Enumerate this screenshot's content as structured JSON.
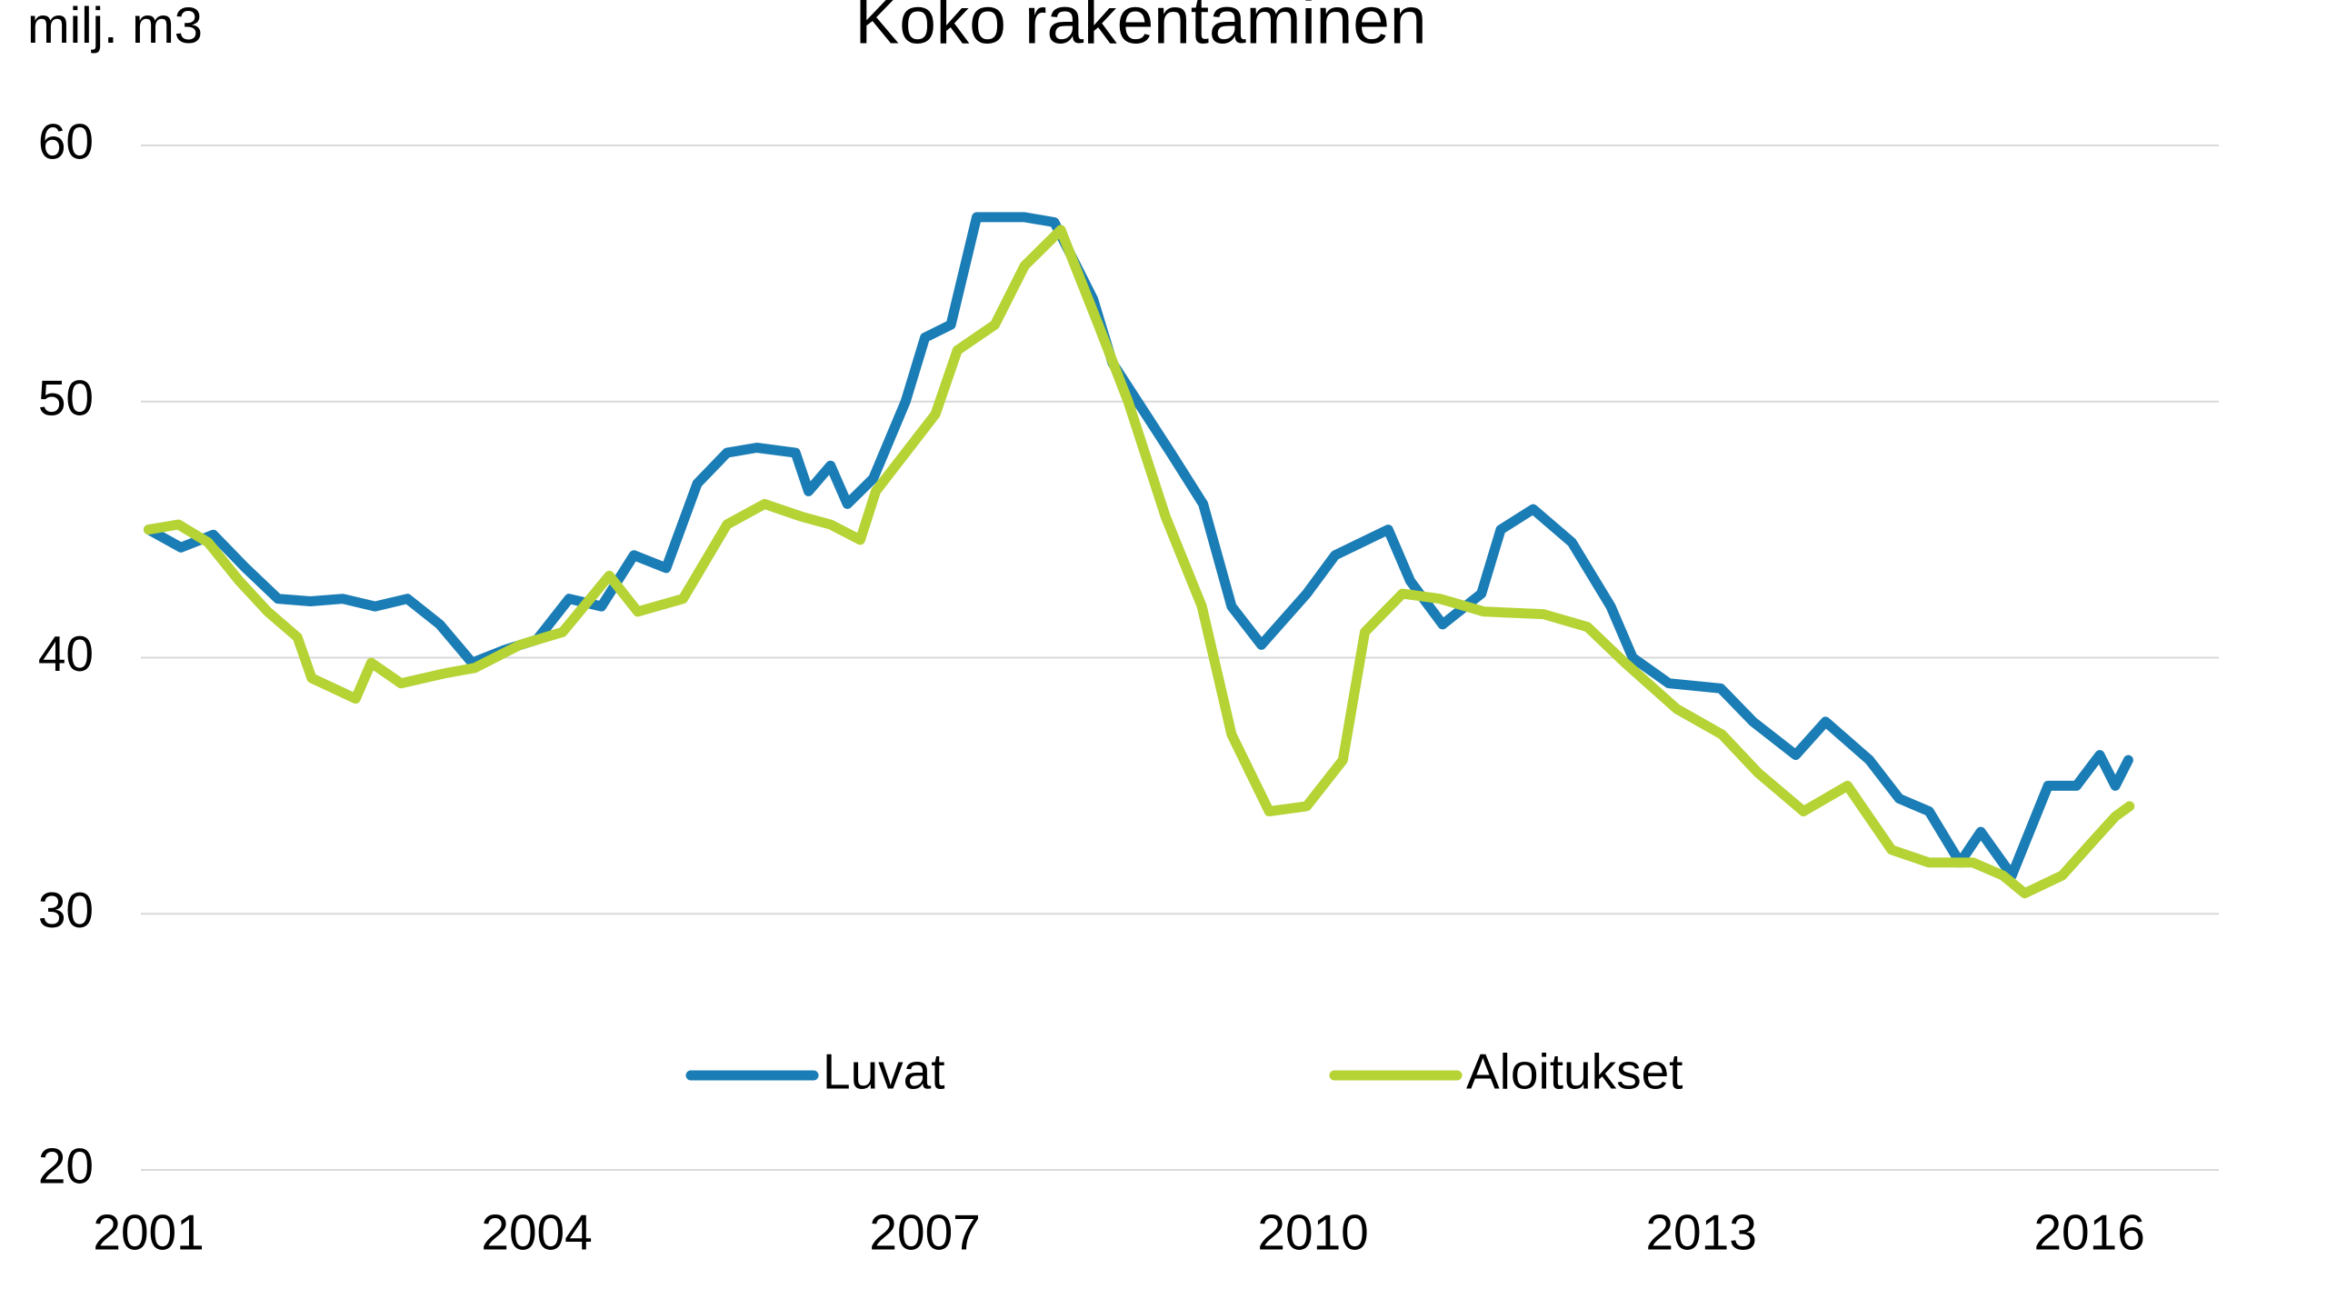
{
  "chart_data": {
    "type": "line",
    "title": "Koko rakentaminen",
    "y_label": "milj. m3",
    "xlim": [
      2000.94,
      2017
    ],
    "xticks": [
      2001,
      2004,
      2007,
      2010,
      2013,
      2016
    ],
    "ylim": [
      20,
      60
    ],
    "yticks": [
      20,
      30,
      40,
      50,
      60
    ],
    "grid": true,
    "legend": "bottom",
    "series": [
      {
        "name": "Luvat",
        "color": "#1b7db5",
        "x": [
          2001.0,
          2001.25,
          2001.5,
          2001.75,
          2002.0,
          2002.25,
          2002.5,
          2002.75,
          2003.0,
          2003.25,
          2003.5,
          2003.75,
          2004.0,
          2004.25,
          2004.5,
          2004.75,
          2005.0,
          2005.24,
          2005.47,
          2005.7,
          2006.0,
          2006.1,
          2006.27,
          2006.4,
          2006.6,
          2006.85,
          2007.0,
          2007.2,
          2007.4,
          2007.77,
          2008.0,
          2008.3,
          2008.45,
          2008.9,
          2009.15,
          2009.37,
          2009.6,
          2009.95,
          2010.17,
          2010.58,
          2010.75,
          2011.0,
          2011.3,
          2011.45,
          2011.7,
          2012.0,
          2012.3,
          2012.47,
          2012.75,
          2013.15,
          2013.4,
          2013.73,
          2013.96,
          2014.3,
          2014.53,
          2014.76,
          2015.0,
          2015.16,
          2015.4,
          2015.68,
          2015.9,
          2016.08,
          2016.2,
          2016.3
        ],
        "values": [
          45,
          44.3,
          44.8,
          43.5,
          42.3,
          42.2,
          42.3,
          42.0,
          42.3,
          41.3,
          39.8,
          40.3,
          40.7,
          42.3,
          42.0,
          44.0,
          43.5,
          46.8,
          48.0,
          48.2,
          48.0,
          46.5,
          47.5,
          46.0,
          47.0,
          50.0,
          52.5,
          53.0,
          57.2,
          57.2,
          57.0,
          54.0,
          51.5,
          48.0,
          46.0,
          42.0,
          40.5,
          42.5,
          44.0,
          45.0,
          43.0,
          41.3,
          42.5,
          45.0,
          45.8,
          44.5,
          42.0,
          40.0,
          39.0,
          38.8,
          37.5,
          36.2,
          37.5,
          36.0,
          34.5,
          34.0,
          32.0,
          33.2,
          31.5,
          35.0,
          35.0,
          36.2,
          35.0,
          36.0
        ]
      },
      {
        "name": "Aloitukset",
        "color": "#b5d334",
        "x": [
          2001.0,
          2001.23,
          2001.46,
          2001.7,
          2001.92,
          2002.15,
          2002.26,
          2002.6,
          2002.72,
          2002.95,
          2003.3,
          2003.52,
          2003.87,
          2004.2,
          2004.56,
          2004.78,
          2005.13,
          2005.47,
          2005.76,
          2006.05,
          2006.27,
          2006.5,
          2006.62,
          2006.85,
          2007.08,
          2007.25,
          2007.54,
          2007.77,
          2008.05,
          2008.34,
          2008.57,
          2008.86,
          2009.14,
          2009.37,
          2009.66,
          2009.95,
          2010.23,
          2010.4,
          2010.69,
          2010.98,
          2011.32,
          2011.78,
          2012.12,
          2012.41,
          2012.81,
          2013.16,
          2013.44,
          2013.79,
          2014.13,
          2014.47,
          2014.76,
          2015.1,
          2015.33,
          2015.5,
          2015.79,
          2016.02,
          2016.2,
          2016.31
        ],
        "values": [
          45,
          45.2,
          44.5,
          43.0,
          41.8,
          40.8,
          39.2,
          38.4,
          39.8,
          39.0,
          39.4,
          39.6,
          40.5,
          41.0,
          43.2,
          41.8,
          42.3,
          45.2,
          46.0,
          45.5,
          45.2,
          44.6,
          46.5,
          48.0,
          49.5,
          52.0,
          53.0,
          55.3,
          56.7,
          53.0,
          50.0,
          45.5,
          42.0,
          37.0,
          34.0,
          34.2,
          36.0,
          41.0,
          42.5,
          42.3,
          41.8,
          41.7,
          41.2,
          39.8,
          38.0,
          37.0,
          35.5,
          34.0,
          35.0,
          32.5,
          32.0,
          32.0,
          31.5,
          30.8,
          31.5,
          32.8,
          33.8,
          34.2
        ]
      }
    ]
  }
}
